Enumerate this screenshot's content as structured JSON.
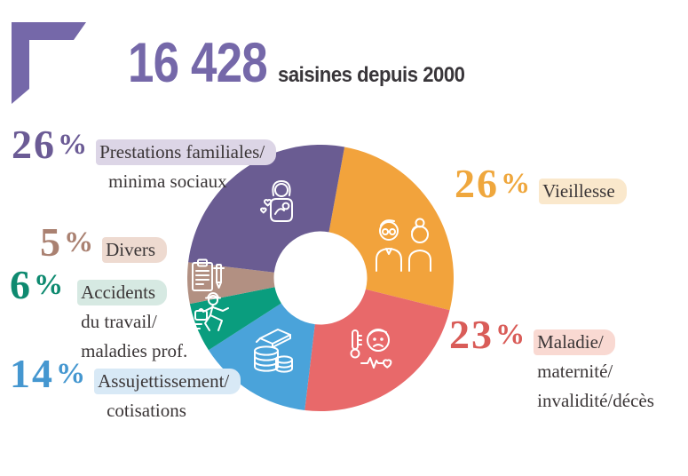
{
  "header": {
    "count": "16 428",
    "subtitle": "saisines depuis 2000",
    "accent_color": "#7568a9",
    "subtitle_color": "#39363a"
  },
  "chart_data": {
    "type": "pie",
    "variant": "donut",
    "title": "16 428 saisines depuis 2000",
    "unit": "%",
    "start_angle_deg": 10.4,
    "clockwise": true,
    "hole_ratio": 0.35,
    "legend_position": "around",
    "segments": [
      {
        "label": "Vieillesse",
        "value": 26,
        "color": "#f2a33c",
        "icon": "elderly-couple-icon"
      },
      {
        "label": "Maladie/maternité/invalidité/décès",
        "value": 23,
        "color": "#e8696a",
        "icon": "sick-person-icon"
      },
      {
        "label": "Assujettissement/cotisations",
        "value": 14,
        "color": "#4aa3da",
        "icon": "money-coins-icon"
      },
      {
        "label": "Accidents du travail/maladies prof.",
        "value": 6,
        "color": "#0a9d7e",
        "icon": "injured-worker-icon"
      },
      {
        "label": "Divers",
        "value": 5,
        "color": "#b29082",
        "icon": "clipboard-pen-icon"
      },
      {
        "label": "Prestations familiales/minima sociaux",
        "value": 26,
        "color": "#6a5c92",
        "icon": "mother-child-icon"
      }
    ]
  },
  "legend": {
    "text_color": "#3b3637",
    "items": [
      {
        "pct": "26",
        "symbol": "%",
        "color": "#6b5b95",
        "highlight": "#dcd5e6",
        "lines": [
          "Prestations familiales/",
          "minima sociaux"
        ]
      },
      {
        "pct": "5",
        "symbol": "%",
        "color": "#aa8171",
        "highlight": "#eedad0",
        "lines": [
          "Divers"
        ]
      },
      {
        "pct": "6",
        "symbol": "%",
        "color": "#0e8a70",
        "highlight": "#d6e9e2",
        "lines": [
          "Accidents",
          "du travail/",
          "maladies prof."
        ]
      },
      {
        "pct": "14",
        "symbol": "%",
        "color": "#4597d0",
        "highlight": "#d8e9f6",
        "lines": [
          "Assujettissement/",
          "cotisations"
        ]
      },
      {
        "pct": "26",
        "symbol": "%",
        "color": "#efa73d",
        "highlight": "#fae8cc",
        "lines": [
          "Vieillesse"
        ]
      },
      {
        "pct": "23",
        "symbol": "%",
        "color": "#d95c58",
        "highlight": "#f9d9d2",
        "lines": [
          "Maladie/",
          "maternité/",
          "invalidité/décès"
        ]
      }
    ]
  }
}
